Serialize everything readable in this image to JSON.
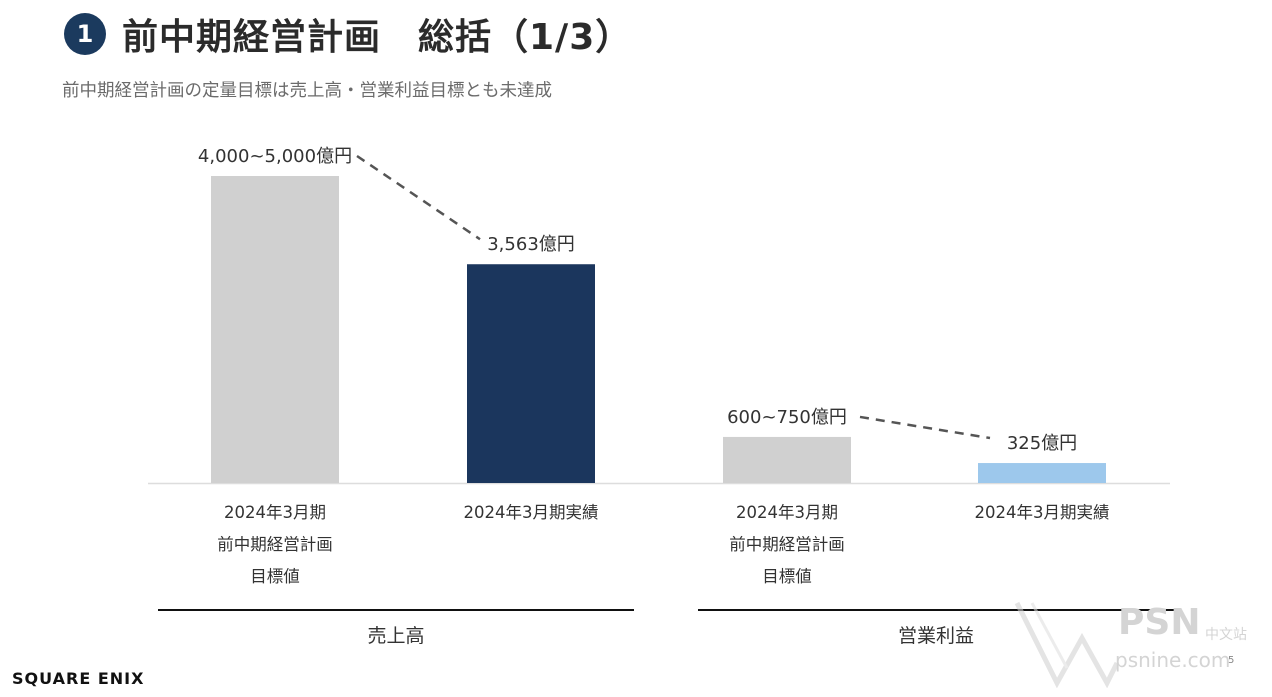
{
  "header": {
    "badge": "1",
    "title": "前中期経営計画　総括（1/3）",
    "subtitle": "前中期経営計画の定量目標は売上高・営業利益目標とも未達成"
  },
  "chart_data": {
    "type": "bar",
    "ylim": [
      0,
      5000
    ],
    "grid": false,
    "categories": [
      "2024年3月期\n前中期経営計画\n目標値",
      "2024年3月期実績",
      "2024年3月期\n前中期経営計画\n目標値",
      "2024年3月期実績"
    ],
    "groups": [
      {
        "label": "売上高",
        "categories": [
          0,
          1
        ]
      },
      {
        "label": "営業利益",
        "categories": [
          2,
          3
        ]
      }
    ],
    "values": [
      5000,
      3563,
      750,
      325
    ],
    "target_ranges": [
      [
        4000,
        5000
      ],
      null,
      [
        600,
        750
      ],
      null
    ],
    "data_labels": [
      "4,000~5,000億円",
      "3,563億円",
      "600~750億円",
      "325億円"
    ],
    "colors": [
      "#d0d0d0",
      "#1b365d",
      "#d0d0d0",
      "#9dc8ec"
    ],
    "annotations": "dashed connector from target to actual in each group"
  },
  "categories_lines": [
    [
      "2024年3月期",
      "前中期経営計画",
      "目標値"
    ],
    [
      "2024年3月期実績"
    ],
    [
      "2024年3月期",
      "前中期経営計画",
      "目標値"
    ],
    [
      "2024年3月期実績"
    ]
  ],
  "footer": {
    "logo": "SQUARE ENIX",
    "page_number": "5",
    "watermark_psn": "PSN",
    "watermark_cn": "中文站",
    "watermark_url": "psnine.com"
  }
}
